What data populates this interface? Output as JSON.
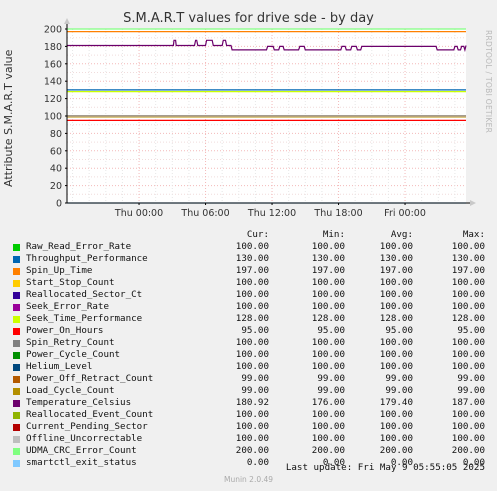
{
  "chart_data": {
    "type": "line",
    "title": "S.M.A.R.T values for drive sde - by day",
    "ylabel": "Attribute S.M.A.R.T value",
    "ylim": [
      0,
      200
    ],
    "yticks": [
      0,
      20,
      40,
      60,
      80,
      100,
      120,
      140,
      160,
      180,
      200
    ],
    "xticks": [
      "Thu 00:00",
      "Thu 06:00",
      "Thu 12:00",
      "Thu 18:00",
      "Fri 00:00"
    ],
    "x_range_hours": [
      -6.5,
      29.5
    ],
    "xtick_hours": [
      0,
      6,
      12,
      18,
      24
    ],
    "grid": true,
    "columns": [
      "Cur:",
      "Min:",
      "Avg:",
      "Max:"
    ],
    "series": [
      {
        "name": "Raw_Read_Error_Rate",
        "color": "#00cc00",
        "cur": "100.00",
        "min": "100.00",
        "avg": "100.00",
        "max": "100.00"
      },
      {
        "name": "Throughput_Performance",
        "color": "#0066b3",
        "cur": "130.00",
        "min": "130.00",
        "avg": "130.00",
        "max": "130.00"
      },
      {
        "name": "Spin_Up_Time",
        "color": "#ff8000",
        "cur": "197.00",
        "min": "197.00",
        "avg": "197.00",
        "max": "197.00"
      },
      {
        "name": "Start_Stop_Count",
        "color": "#ffcc00",
        "cur": "100.00",
        "min": "100.00",
        "avg": "100.00",
        "max": "100.00"
      },
      {
        "name": "Reallocated_Sector_Ct",
        "color": "#330099",
        "cur": "100.00",
        "min": "100.00",
        "avg": "100.00",
        "max": "100.00"
      },
      {
        "name": "Seek_Error_Rate",
        "color": "#990099",
        "cur": "100.00",
        "min": "100.00",
        "avg": "100.00",
        "max": "100.00"
      },
      {
        "name": "Seek_Time_Performance",
        "color": "#ccff00",
        "cur": "128.00",
        "min": "128.00",
        "avg": "128.00",
        "max": "128.00"
      },
      {
        "name": "Power_On_Hours",
        "color": "#ff0000",
        "cur": "95.00",
        "min": "95.00",
        "avg": "95.00",
        "max": "95.00"
      },
      {
        "name": "Spin_Retry_Count",
        "color": "#808080",
        "cur": "100.00",
        "min": "100.00",
        "avg": "100.00",
        "max": "100.00"
      },
      {
        "name": "Power_Cycle_Count",
        "color": "#008f00",
        "cur": "100.00",
        "min": "100.00",
        "avg": "100.00",
        "max": "100.00"
      },
      {
        "name": "Helium_Level",
        "color": "#00487d",
        "cur": "100.00",
        "min": "100.00",
        "avg": "100.00",
        "max": "100.00"
      },
      {
        "name": "Power_Off_Retract_Count",
        "color": "#b35a00",
        "cur": "99.00",
        "min": "99.00",
        "avg": "99.00",
        "max": "99.00"
      },
      {
        "name": "Load_Cycle_Count",
        "color": "#b38f00",
        "cur": "99.00",
        "min": "99.00",
        "avg": "99.00",
        "max": "99.00"
      },
      {
        "name": "Temperature_Celsius",
        "color": "#6b006b",
        "cur": "180.92",
        "min": "176.00",
        "avg": "179.40",
        "max": "187.00",
        "x_hours": [
          -6.5,
          3.1,
          3.15,
          3.3,
          3.35,
          5.0,
          5.1,
          5.2,
          5.3,
          6.0,
          6.1,
          6.6,
          6.7,
          7.5,
          7.6,
          7.8,
          7.9,
          8.3,
          8.4,
          11.5,
          11.6,
          12.1,
          12.2,
          12.6,
          12.7,
          13.0,
          13.1,
          14.4,
          14.5,
          14.9,
          15.0,
          15.8,
          15.9,
          18.2,
          18.3,
          18.6,
          18.7,
          19.1,
          19.2,
          19.6,
          19.7,
          20.0,
          20.1,
          26.8,
          26.9,
          27.1,
          27.2,
          28.4,
          28.5,
          28.7,
          28.8,
          29.0,
          29.1,
          29.3,
          29.4,
          29.5
        ],
        "y": [
          181,
          181,
          187,
          187,
          181,
          181,
          187,
          187,
          181,
          181,
          187,
          187,
          181,
          181,
          187,
          187,
          181,
          181,
          176,
          176,
          180,
          180,
          176,
          176,
          180,
          180,
          176,
          176,
          180,
          180,
          176,
          176,
          176,
          176,
          180,
          180,
          176,
          176,
          180,
          180,
          176,
          176,
          180,
          180,
          176,
          176,
          176,
          176,
          180,
          180,
          176,
          176,
          180,
          180,
          176,
          181
        ]
      },
      {
        "name": "Reallocated_Event_Count",
        "color": "#8fb300",
        "cur": "100.00",
        "min": "100.00",
        "avg": "100.00",
        "max": "100.00"
      },
      {
        "name": "Current_Pending_Sector",
        "color": "#b30000",
        "cur": "100.00",
        "min": "100.00",
        "avg": "100.00",
        "max": "100.00"
      },
      {
        "name": "Offline_Uncorrectable",
        "color": "#bebebe",
        "cur": "100.00",
        "min": "100.00",
        "avg": "100.00",
        "max": "100.00"
      },
      {
        "name": "UDMA_CRC_Error_Count",
        "color": "#80ff80",
        "cur": "200.00",
        "min": "200.00",
        "avg": "200.00",
        "max": "200.00"
      },
      {
        "name": "smartctl_exit_status",
        "color": "#80c9ff",
        "cur": "0.00",
        "min": "0.00",
        "avg": "0.00",
        "max": "0.00"
      }
    ]
  },
  "footer": {
    "last_update": "Last update: Fri May  9 05:55:05 2025",
    "munin": "Munin 2.0.49"
  },
  "watermark": "RRDTOOL / TOBI OETIKER"
}
